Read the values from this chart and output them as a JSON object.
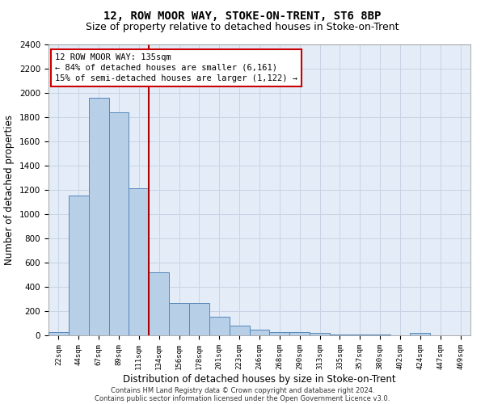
{
  "title": "12, ROW MOOR WAY, STOKE-ON-TRENT, ST6 8BP",
  "subtitle": "Size of property relative to detached houses in Stoke-on-Trent",
  "xlabel": "Distribution of detached houses by size in Stoke-on-Trent",
  "ylabel": "Number of detached properties",
  "bar_values": [
    30,
    1150,
    1960,
    1840,
    1210,
    520,
    265,
    265,
    155,
    80,
    50,
    30,
    30,
    20,
    10,
    5,
    5,
    0,
    20,
    0,
    0
  ],
  "categories": [
    "22sqm",
    "44sqm",
    "67sqm",
    "89sqm",
    "111sqm",
    "134sqm",
    "156sqm",
    "178sqm",
    "201sqm",
    "223sqm",
    "246sqm",
    "268sqm",
    "290sqm",
    "313sqm",
    "335sqm",
    "357sqm",
    "380sqm",
    "402sqm",
    "424sqm",
    "447sqm",
    "469sqm"
  ],
  "bar_color": "#b8cfe8",
  "bar_edge_color": "#5588bb",
  "vline_color": "#aa0000",
  "annotation_text": "12 ROW MOOR WAY: 135sqm\n← 84% of detached houses are smaller (6,161)\n15% of semi-detached houses are larger (1,122) →",
  "annotation_box_color": "#cc0000",
  "ylim": [
    0,
    2400
  ],
  "yticks": [
    0,
    200,
    400,
    600,
    800,
    1000,
    1200,
    1400,
    1600,
    1800,
    2000,
    2200,
    2400
  ],
  "grid_color": "#c8d4e4",
  "background_color": "#e4ecf8",
  "footer_line1": "Contains HM Land Registry data © Crown copyright and database right 2024.",
  "footer_line2": "Contains public sector information licensed under the Open Government Licence v3.0.",
  "title_fontsize": 10,
  "subtitle_fontsize": 9,
  "xlabel_fontsize": 8.5,
  "ylabel_fontsize": 8.5
}
